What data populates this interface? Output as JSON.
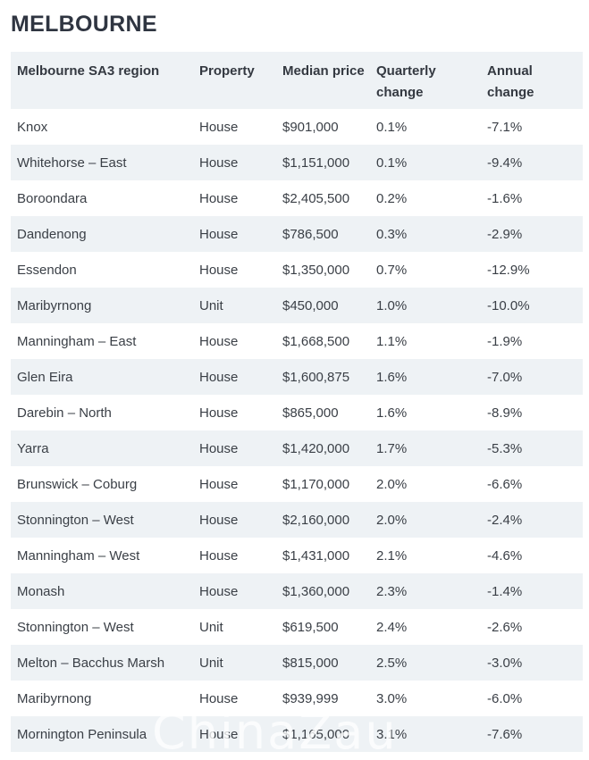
{
  "heading": "MELBOURNE",
  "table": {
    "columns": [
      "Melbourne SA3 region",
      "Property",
      "Median price",
      "Quarterly change",
      "Annual change"
    ],
    "rows": [
      [
        "Knox",
        "House",
        "$901,000",
        "0.1%",
        "-7.1%"
      ],
      [
        "Whitehorse – East",
        "House",
        "$1,151,000",
        "0.1%",
        "-9.4%"
      ],
      [
        "Boroondara",
        "House",
        "$2,405,500",
        "0.2%",
        "-1.6%"
      ],
      [
        "Dandenong",
        "House",
        "$786,500",
        "0.3%",
        "-2.9%"
      ],
      [
        "Essendon",
        "House",
        "$1,350,000",
        "0.7%",
        "-12.9%"
      ],
      [
        "Maribyrnong",
        "Unit",
        "$450,000",
        "1.0%",
        "-10.0%"
      ],
      [
        "Manningham – East",
        "House",
        "$1,668,500",
        "1.1%",
        "-1.9%"
      ],
      [
        "Glen Eira",
        "House",
        "$1,600,875",
        "1.6%",
        "-7.0%"
      ],
      [
        "Darebin – North",
        "House",
        "$865,000",
        "1.6%",
        "-8.9%"
      ],
      [
        "Yarra",
        "House",
        "$1,420,000",
        "1.7%",
        "-5.3%"
      ],
      [
        "Brunswick – Coburg",
        "House",
        "$1,170,000",
        "2.0%",
        "-6.6%"
      ],
      [
        "Stonnington – West",
        "House",
        "$2,160,000",
        "2.0%",
        "-2.4%"
      ],
      [
        "Manningham – West",
        "House",
        "$1,431,000",
        "2.1%",
        "-4.6%"
      ],
      [
        "Monash",
        "House",
        "$1,360,000",
        "2.3%",
        "-1.4%"
      ],
      [
        "Stonnington – West",
        "Unit",
        "$619,500",
        "2.4%",
        "-2.6%"
      ],
      [
        "Melton – Bacchus Marsh",
        "Unit",
        "$815,000",
        "2.5%",
        "-3.0%"
      ],
      [
        "Maribyrnong",
        "House",
        "$939,999",
        "3.0%",
        "-6.0%"
      ],
      [
        "Mornington Peninsula",
        "House",
        "$1,165,000",
        "3.1%",
        "-7.6%"
      ]
    ]
  },
  "watermark": "ChinaZau"
}
